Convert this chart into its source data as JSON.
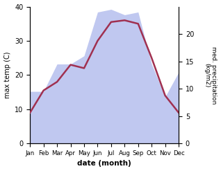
{
  "months": [
    "Jan",
    "Feb",
    "Mar",
    "Apr",
    "May",
    "Jun",
    "Jul",
    "Aug",
    "Sep",
    "Oct",
    "Nov",
    "Dec"
  ],
  "temp": [
    9.0,
    15.5,
    18.0,
    23.0,
    22.0,
    30.0,
    35.5,
    36.0,
    35.0,
    25.0,
    14.0,
    9.0
  ],
  "precip": [
    9.5,
    9.5,
    14.5,
    14.5,
    16.0,
    24.0,
    24.5,
    23.5,
    24.0,
    14.5,
    8.5,
    13.0
  ],
  "temp_color": "#a03050",
  "precip_fill_color": "#c0c8f0",
  "xlabel": "date (month)",
  "ylabel_left": "max temp (C)",
  "ylabel_right": "med. precipitation\n(kg/m2)",
  "ylim_left": [
    0,
    40
  ],
  "ylim_right": [
    0,
    25
  ],
  "yticks_left": [
    0,
    10,
    20,
    30,
    40
  ],
  "yticks_right": [
    0,
    5,
    10,
    15,
    20
  ],
  "linewidth": 1.8,
  "bg_color": "#ffffff"
}
